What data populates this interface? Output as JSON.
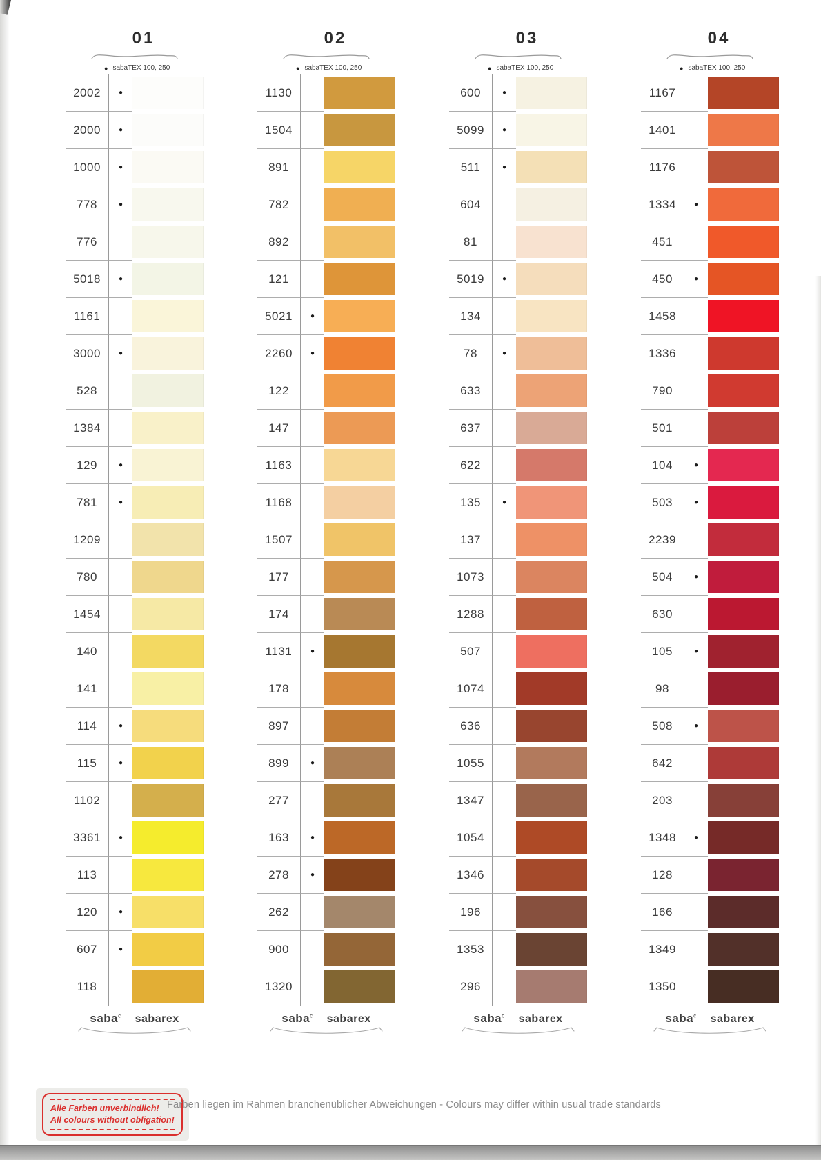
{
  "page": {
    "brand_small": "sabaTEX 100, 250",
    "logo_saba": "saba",
    "logo_saba_sup": "c",
    "logo_sabarex": "sabarex",
    "stamp_line1": "Alle Farben unverbindlich!",
    "stamp_line2": "All colours without obligation!",
    "stamp_color": "#da2f2d",
    "footer_note": "Farben liegen im Rahmen branchenüblicher Abweichungen - Colours may differ within usual trade standards"
  },
  "columns": [
    {
      "id": "01",
      "rows": [
        {
          "num": "2002",
          "dot": true,
          "color": "#FDFDFB"
        },
        {
          "num": "2000",
          "dot": true,
          "color": "#FCFCFA"
        },
        {
          "num": "1000",
          "dot": true,
          "color": "#FBFAF4"
        },
        {
          "num": "778",
          "dot": true,
          "color": "#F8F8EE"
        },
        {
          "num": "776",
          "dot": false,
          "color": "#F7F7EB"
        },
        {
          "num": "5018",
          "dot": true,
          "color": "#F3F5E6"
        },
        {
          "num": "1161",
          "dot": false,
          "color": "#FAF5D9"
        },
        {
          "num": "3000",
          "dot": true,
          "color": "#F9F3DC"
        },
        {
          "num": "528",
          "dot": false,
          "color": "#F1F2E0"
        },
        {
          "num": "1384",
          "dot": false,
          "color": "#F9F1C9"
        },
        {
          "num": "129",
          "dot": true,
          "color": "#F9F3D4"
        },
        {
          "num": "781",
          "dot": true,
          "color": "#F7EDB5"
        },
        {
          "num": "1209",
          "dot": false,
          "color": "#F2E3AB"
        },
        {
          "num": "780",
          "dot": false,
          "color": "#EFD78D"
        },
        {
          "num": "1454",
          "dot": false,
          "color": "#F6E9A5"
        },
        {
          "num": "140",
          "dot": false,
          "color": "#F3D962"
        },
        {
          "num": "141",
          "dot": false,
          "color": "#F8F0A5"
        },
        {
          "num": "114",
          "dot": true,
          "color": "#F6DC7C"
        },
        {
          "num": "115",
          "dot": true,
          "color": "#F2D24C"
        },
        {
          "num": "1102",
          "dot": false,
          "color": "#D4AF4C"
        },
        {
          "num": "3361",
          "dot": true,
          "color": "#F5EC2D"
        },
        {
          "num": "113",
          "dot": false,
          "color": "#F7E83E"
        },
        {
          "num": "120",
          "dot": true,
          "color": "#F7DF68"
        },
        {
          "num": "607",
          "dot": true,
          "color": "#F2CC45"
        },
        {
          "num": "118",
          "dot": false,
          "color": "#E2AE35"
        }
      ]
    },
    {
      "id": "02",
      "rows": [
        {
          "num": "1130",
          "dot": false,
          "color": "#D19A3E"
        },
        {
          "num": "1504",
          "dot": false,
          "color": "#C8973F"
        },
        {
          "num": "891",
          "dot": false,
          "color": "#F6D567"
        },
        {
          "num": "782",
          "dot": false,
          "color": "#F0AF52"
        },
        {
          "num": "892",
          "dot": false,
          "color": "#F2C067"
        },
        {
          "num": "121",
          "dot": false,
          "color": "#DE9539"
        },
        {
          "num": "5021",
          "dot": true,
          "color": "#F7AE55"
        },
        {
          "num": "2260",
          "dot": true,
          "color": "#F08233"
        },
        {
          "num": "122",
          "dot": false,
          "color": "#F19B49"
        },
        {
          "num": "147",
          "dot": false,
          "color": "#EC9A55"
        },
        {
          "num": "1163",
          "dot": false,
          "color": "#F7D795"
        },
        {
          "num": "1168",
          "dot": false,
          "color": "#F4CFA2"
        },
        {
          "num": "1507",
          "dot": false,
          "color": "#F0C468"
        },
        {
          "num": "177",
          "dot": false,
          "color": "#D6974C"
        },
        {
          "num": "174",
          "dot": false,
          "color": "#B98A55"
        },
        {
          "num": "1131",
          "dot": true,
          "color": "#A67730"
        },
        {
          "num": "178",
          "dot": false,
          "color": "#D78A3C"
        },
        {
          "num": "897",
          "dot": false,
          "color": "#C37D36"
        },
        {
          "num": "899",
          "dot": true,
          "color": "#AC8056"
        },
        {
          "num": "277",
          "dot": false,
          "color": "#A8783A"
        },
        {
          "num": "163",
          "dot": true,
          "color": "#BC6827"
        },
        {
          "num": "278",
          "dot": true,
          "color": "#84421A"
        },
        {
          "num": "262",
          "dot": false,
          "color": "#A4876B"
        },
        {
          "num": "900",
          "dot": false,
          "color": "#946637"
        },
        {
          "num": "1320",
          "dot": false,
          "color": "#826632"
        }
      ]
    },
    {
      "id": "03",
      "rows": [
        {
          "num": "600",
          "dot": true,
          "color": "#F6F2E2"
        },
        {
          "num": "5099",
          "dot": true,
          "color": "#F8F5E6"
        },
        {
          "num": "511",
          "dot": true,
          "color": "#F4E0B6"
        },
        {
          "num": "604",
          "dot": false,
          "color": "#F5F0E2"
        },
        {
          "num": "81",
          "dot": false,
          "color": "#F8E2D0"
        },
        {
          "num": "5019",
          "dot": true,
          "color": "#F5DDBC"
        },
        {
          "num": "134",
          "dot": false,
          "color": "#F8E4C2"
        },
        {
          "num": "78",
          "dot": true,
          "color": "#EFBE98"
        },
        {
          "num": "633",
          "dot": false,
          "color": "#EDA376"
        },
        {
          "num": "637",
          "dot": false,
          "color": "#D9AA96"
        },
        {
          "num": "622",
          "dot": false,
          "color": "#D5796A"
        },
        {
          "num": "135",
          "dot": true,
          "color": "#F09578"
        },
        {
          "num": "137",
          "dot": false,
          "color": "#EE9166"
        },
        {
          "num": "1073",
          "dot": false,
          "color": "#DB8560"
        },
        {
          "num": "1288",
          "dot": false,
          "color": "#BF6140"
        },
        {
          "num": "507",
          "dot": false,
          "color": "#EE6F60"
        },
        {
          "num": "1074",
          "dot": false,
          "color": "#A23A28"
        },
        {
          "num": "636",
          "dot": false,
          "color": "#98452F"
        },
        {
          "num": "1055",
          "dot": false,
          "color": "#B27A5D"
        },
        {
          "num": "1347",
          "dot": false,
          "color": "#99644B"
        },
        {
          "num": "1054",
          "dot": false,
          "color": "#AE4A26"
        },
        {
          "num": "1346",
          "dot": false,
          "color": "#A54A2B"
        },
        {
          "num": "196",
          "dot": false,
          "color": "#87503E"
        },
        {
          "num": "1353",
          "dot": false,
          "color": "#6A4433"
        },
        {
          "num": "296",
          "dot": false,
          "color": "#A67B70"
        }
      ]
    },
    {
      "id": "04",
      "rows": [
        {
          "num": "1167",
          "dot": false,
          "color": "#B44527"
        },
        {
          "num": "1401",
          "dot": false,
          "color": "#EE7848"
        },
        {
          "num": "1176",
          "dot": false,
          "color": "#BE5439"
        },
        {
          "num": "1334",
          "dot": true,
          "color": "#F06A3B"
        },
        {
          "num": "451",
          "dot": false,
          "color": "#F0592A"
        },
        {
          "num": "450",
          "dot": true,
          "color": "#E55525"
        },
        {
          "num": "1458",
          "dot": false,
          "color": "#EF1425"
        },
        {
          "num": "1336",
          "dot": false,
          "color": "#CE392E"
        },
        {
          "num": "790",
          "dot": false,
          "color": "#D03A30"
        },
        {
          "num": "501",
          "dot": false,
          "color": "#BC403A"
        },
        {
          "num": "104",
          "dot": true,
          "color": "#E42850"
        },
        {
          "num": "503",
          "dot": true,
          "color": "#DA1A3E"
        },
        {
          "num": "2239",
          "dot": false,
          "color": "#C22C3C"
        },
        {
          "num": "504",
          "dot": true,
          "color": "#C01C3C"
        },
        {
          "num": "630",
          "dot": false,
          "color": "#BB1831"
        },
        {
          "num": "105",
          "dot": true,
          "color": "#A0222F"
        },
        {
          "num": "98",
          "dot": false,
          "color": "#9A1E2E"
        },
        {
          "num": "508",
          "dot": true,
          "color": "#BD5349"
        },
        {
          "num": "642",
          "dot": false,
          "color": "#AE3A38"
        },
        {
          "num": "203",
          "dot": false,
          "color": "#874038"
        },
        {
          "num": "1348",
          "dot": true,
          "color": "#762A28"
        },
        {
          "num": "128",
          "dot": false,
          "color": "#7A2430"
        },
        {
          "num": "166",
          "dot": false,
          "color": "#5C2C2A"
        },
        {
          "num": "1349",
          "dot": false,
          "color": "#523029"
        },
        {
          "num": "1350",
          "dot": false,
          "color": "#472D23"
        }
      ]
    }
  ]
}
